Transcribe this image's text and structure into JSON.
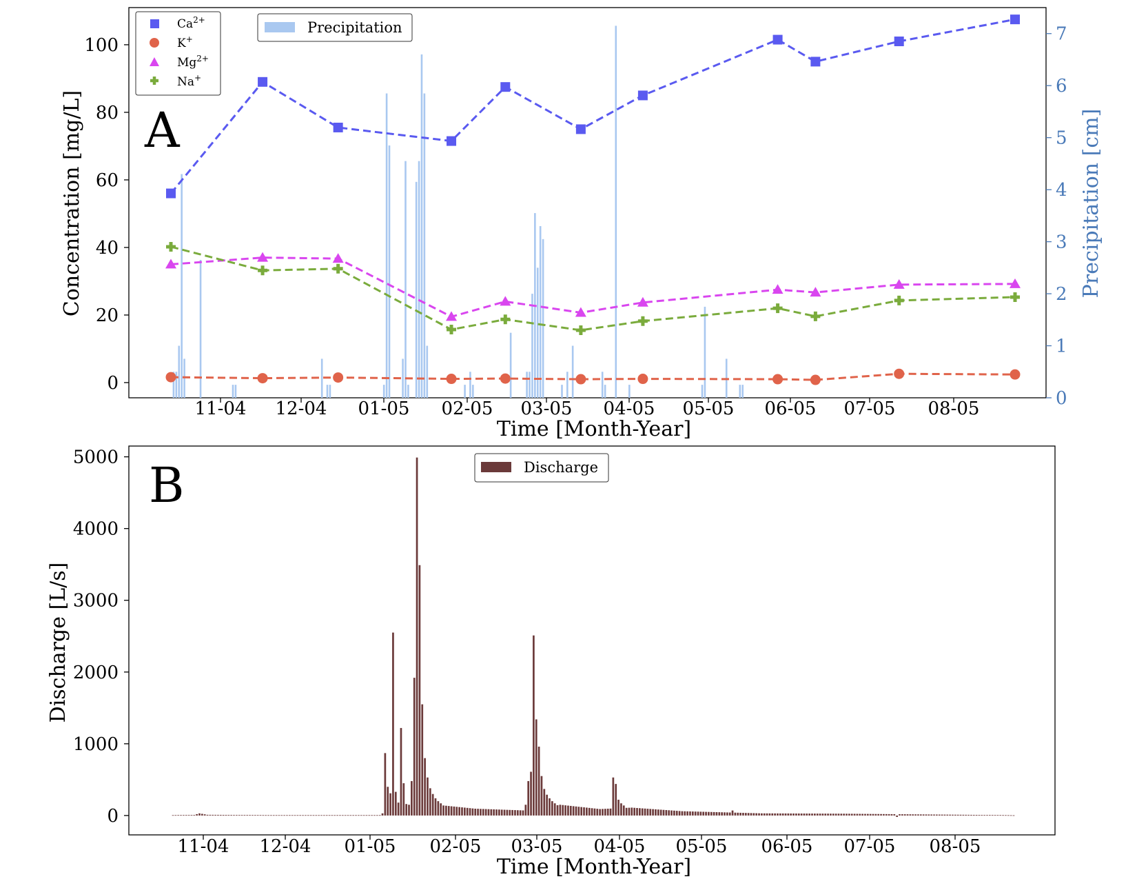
{
  "chart_data": [
    {
      "panel": "A",
      "type": "line",
      "xlabel": "Time [Month-Year]",
      "ylabel": "Concentration [mg/L]",
      "ylabel_right": "Precipitation [cm]",
      "x_ticks": [
        "11-04",
        "12-04",
        "01-05",
        "02-05",
        "03-05",
        "04-05",
        "05-05",
        "06-05",
        "07-05",
        "08-05"
      ],
      "ylim": [
        -4.5,
        111
      ],
      "yticks": [
        "0",
        "20",
        "40",
        "60",
        "80",
        "100"
      ],
      "ylim_right": [
        0,
        7.5
      ],
      "yticks_right": [
        "0",
        "1",
        "2",
        "3",
        "4",
        "5",
        "6",
        "7"
      ],
      "x": [
        "2004-10-13",
        "2004-11-16",
        "2004-12-14",
        "2005-01-25",
        "2005-02-14",
        "2005-03-14",
        "2005-04-06",
        "2005-05-26",
        "2005-06-09",
        "2005-07-10",
        "2005-08-22"
      ],
      "series": [
        {
          "name": "Ca2+",
          "label_base": "Ca",
          "label_sup": "2+",
          "marker": "square",
          "color": "#5a5af0",
          "values": [
            56,
            89,
            75.5,
            71.5,
            87.5,
            75,
            85,
            101.5,
            95,
            101,
            107.5
          ]
        },
        {
          "name": "K+",
          "label_base": "K",
          "label_sup": "+",
          "marker": "circle",
          "color": "#e0634a",
          "values": [
            1.6,
            1.3,
            1.5,
            1.1,
            1.2,
            1.0,
            1.1,
            1.0,
            0.8,
            2.6,
            2.4
          ]
        },
        {
          "name": "Mg2+",
          "label_base": "Mg",
          "label_sup": "2+",
          "marker": "triangle",
          "color": "#d946ef",
          "values": [
            35,
            37,
            36.7,
            19.5,
            24,
            20.7,
            23.7,
            27.5,
            26.7,
            29,
            29.2
          ]
        },
        {
          "name": "Na+",
          "label_base": "Na",
          "label_sup": "+",
          "marker": "plus",
          "color": "#7aab3c",
          "values": [
            40.2,
            33.2,
            33.7,
            15.7,
            18.7,
            15.5,
            18.2,
            22,
            19.6,
            24.3,
            25.3
          ]
        }
      ],
      "precipitation": {
        "name": "Precipitation",
        "color": "#a9c8f0",
        "bars": [
          {
            "x": "2004-10-14",
            "v": 0.5
          },
          {
            "x": "2004-10-15",
            "v": 0.5
          },
          {
            "x": "2004-10-16",
            "v": 1.0
          },
          {
            "x": "2004-10-17",
            "v": 4.3
          },
          {
            "x": "2004-10-18",
            "v": 0.75
          },
          {
            "x": "2004-10-24",
            "v": 2.65
          },
          {
            "x": "2004-11-05",
            "v": 0.25
          },
          {
            "x": "2004-11-06",
            "v": 0.25
          },
          {
            "x": "2004-12-08",
            "v": 0.75
          },
          {
            "x": "2004-12-10",
            "v": 0.25
          },
          {
            "x": "2004-12-11",
            "v": 0.25
          },
          {
            "x": "2004-12-31",
            "v": 0.25
          },
          {
            "x": "2005-01-01",
            "v": 5.85
          },
          {
            "x": "2005-01-02",
            "v": 4.85
          },
          {
            "x": "2005-01-07",
            "v": 0.75
          },
          {
            "x": "2005-01-08",
            "v": 4.55
          },
          {
            "x": "2005-01-09",
            "v": 0.25
          },
          {
            "x": "2005-01-12",
            "v": 4.15
          },
          {
            "x": "2005-01-13",
            "v": 4.55
          },
          {
            "x": "2005-01-14",
            "v": 6.6
          },
          {
            "x": "2005-01-15",
            "v": 5.85
          },
          {
            "x": "2005-01-16",
            "v": 1.0
          },
          {
            "x": "2005-01-30",
            "v": 0.25
          },
          {
            "x": "2005-02-01",
            "v": 0.5
          },
          {
            "x": "2005-02-02",
            "v": 0.25
          },
          {
            "x": "2005-02-16",
            "v": 1.25
          },
          {
            "x": "2005-02-22",
            "v": 0.5
          },
          {
            "x": "2005-02-23",
            "v": 0.5
          },
          {
            "x": "2005-02-24",
            "v": 2.0
          },
          {
            "x": "2005-02-25",
            "v": 3.55
          },
          {
            "x": "2005-02-26",
            "v": 2.5
          },
          {
            "x": "2005-02-27",
            "v": 3.3
          },
          {
            "x": "2005-02-28",
            "v": 3.05
          },
          {
            "x": "2005-03-07",
            "v": 0.25
          },
          {
            "x": "2005-03-09",
            "v": 0.5
          },
          {
            "x": "2005-03-11",
            "v": 1.0
          },
          {
            "x": "2005-03-22",
            "v": 0.5
          },
          {
            "x": "2005-03-23",
            "v": 0.25
          },
          {
            "x": "2005-03-27",
            "v": 7.15
          },
          {
            "x": "2005-04-01",
            "v": 0.25
          },
          {
            "x": "2005-04-28",
            "v": 0.25
          },
          {
            "x": "2005-04-29",
            "v": 1.75
          },
          {
            "x": "2005-05-07",
            "v": 0.75
          },
          {
            "x": "2005-05-12",
            "v": 0.25
          },
          {
            "x": "2005-05-13",
            "v": 0.25
          }
        ]
      }
    },
    {
      "panel": "B",
      "type": "bar",
      "xlabel": "Time [Month-Year]",
      "ylabel": "Discharge [L/s]",
      "x_ticks": [
        "11-04",
        "12-04",
        "01-05",
        "02-05",
        "03-05",
        "04-05",
        "05-05",
        "06-05",
        "07-05",
        "08-05"
      ],
      "ylim": [
        -270,
        5150
      ],
      "yticks": [
        "0",
        "1000",
        "2000",
        "3000",
        "4000",
        "5000"
      ],
      "series": [
        {
          "name": "Discharge",
          "color": "#6b3a3a"
        }
      ],
      "baseflow_keyframes": [
        {
          "x": "2004-10-10",
          "v": 5
        },
        {
          "x": "2004-10-18",
          "v": 8
        },
        {
          "x": "2004-10-20",
          "v": 30
        },
        {
          "x": "2004-10-23",
          "v": 10
        },
        {
          "x": "2004-11-15",
          "v": 5
        },
        {
          "x": "2004-12-27",
          "v": 5
        },
        {
          "x": "2005-01-20",
          "v": 140
        },
        {
          "x": "2005-02-01",
          "v": 95
        },
        {
          "x": "2005-02-20",
          "v": 70
        },
        {
          "x": "2005-03-05",
          "v": 150
        },
        {
          "x": "2005-03-20",
          "v": 90
        },
        {
          "x": "2005-04-01",
          "v": 110
        },
        {
          "x": "2005-04-20",
          "v": 60
        },
        {
          "x": "2005-05-20",
          "v": 30
        },
        {
          "x": "2005-06-20",
          "v": 25
        },
        {
          "x": "2005-07-20",
          "v": 15
        },
        {
          "x": "2005-08-20",
          "v": 5
        },
        {
          "x": "2005-08-23",
          "v": 3
        }
      ],
      "peaks": [
        {
          "x": "2004-12-28",
          "v": 30
        },
        {
          "x": "2004-12-29",
          "v": 870
        },
        {
          "x": "2004-12-30",
          "v": 400
        },
        {
          "x": "2004-12-31",
          "v": 310
        },
        {
          "x": "2005-01-01",
          "v": 2550
        },
        {
          "x": "2005-01-02",
          "v": 330
        },
        {
          "x": "2005-01-03",
          "v": 180
        },
        {
          "x": "2005-01-04",
          "v": 1220
        },
        {
          "x": "2005-01-05",
          "v": 450
        },
        {
          "x": "2005-01-06",
          "v": 160
        },
        {
          "x": "2005-01-07",
          "v": 150
        },
        {
          "x": "2005-01-08",
          "v": 480
        },
        {
          "x": "2005-01-09",
          "v": 1920
        },
        {
          "x": "2005-01-10",
          "v": 4990
        },
        {
          "x": "2005-01-11",
          "v": 3490
        },
        {
          "x": "2005-01-12",
          "v": 1550
        },
        {
          "x": "2005-01-13",
          "v": 800
        },
        {
          "x": "2005-01-14",
          "v": 530
        },
        {
          "x": "2005-01-15",
          "v": 380
        },
        {
          "x": "2005-01-16",
          "v": 300
        },
        {
          "x": "2005-01-17",
          "v": 240
        },
        {
          "x": "2005-01-18",
          "v": 200
        },
        {
          "x": "2005-01-19",
          "v": 170
        },
        {
          "x": "2005-02-20",
          "v": 150
        },
        {
          "x": "2005-02-21",
          "v": 480
        },
        {
          "x": "2005-02-22",
          "v": 610
        },
        {
          "x": "2005-02-23",
          "v": 2510
        },
        {
          "x": "2005-02-24",
          "v": 1340
        },
        {
          "x": "2005-02-25",
          "v": 960
        },
        {
          "x": "2005-02-26",
          "v": 550
        },
        {
          "x": "2005-02-27",
          "v": 370
        },
        {
          "x": "2005-02-28",
          "v": 290
        },
        {
          "x": "2005-03-01",
          "v": 240
        },
        {
          "x": "2005-03-02",
          "v": 200
        },
        {
          "x": "2005-03-03",
          "v": 170
        },
        {
          "x": "2005-03-25",
          "v": 530
        },
        {
          "x": "2005-03-26",
          "v": 440
        },
        {
          "x": "2005-03-27",
          "v": 220
        },
        {
          "x": "2005-03-28",
          "v": 170
        },
        {
          "x": "2005-03-29",
          "v": 140
        },
        {
          "x": "2005-05-09",
          "v": 70
        },
        {
          "x": "2005-07-10",
          "v": -20
        }
      ]
    }
  ]
}
